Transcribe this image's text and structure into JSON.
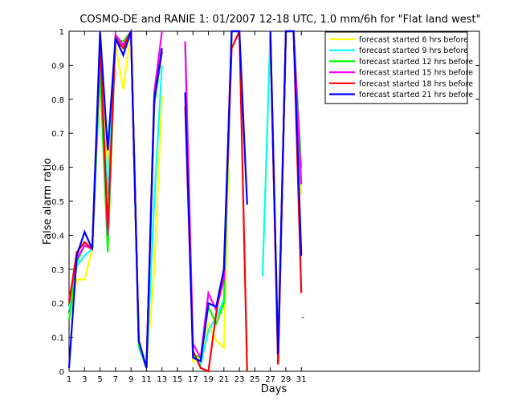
{
  "chart_data": {
    "type": "line",
    "title": "COSMO-DE and RANIE 1: 01/2007 12-18 UTC, 1.0 mm/6h for \"Flat land west\"",
    "xlabel": "Days",
    "ylabel": "False alarm ratio",
    "xlim": [
      1,
      54
    ],
    "ylim": [
      0,
      1
    ],
    "x_ticks": [
      1,
      3,
      5,
      7,
      9,
      11,
      13,
      15,
      17,
      19,
      21,
      23,
      25,
      27,
      29,
      31
    ],
    "y_ticks": [
      0,
      0.1,
      0.2,
      0.3,
      0.4,
      0.5,
      0.6,
      0.7,
      0.8,
      0.9,
      1
    ],
    "y_tick_labels": [
      "0",
      "0.1",
      "0.2",
      "0.3",
      "0.4",
      "0.5",
      "0.6",
      "0.7",
      "0.8",
      "0.9",
      "1"
    ],
    "legend_position": "top-right",
    "grid": false,
    "x": [
      1,
      2,
      3,
      4,
      5,
      6,
      7,
      8,
      9,
      10,
      11,
      12,
      13,
      14,
      15,
      16,
      17,
      18,
      19,
      20,
      21,
      22,
      23,
      24,
      25,
      26,
      27,
      28,
      29,
      30,
      31
    ],
    "series": [
      {
        "name": "forecast started 6 hrs before",
        "color": "#ffff00",
        "values": [
          0.16,
          0.27,
          0.27,
          0.36,
          0.95,
          0.6,
          0.96,
          0.83,
          1.0,
          0.07,
          0.01,
          0.3,
          0.81,
          null,
          null,
          0.97,
          0.03,
          0.04,
          0.14,
          0.09,
          0.07,
          1.0,
          1.0,
          null,
          null,
          0.3,
          1.0,
          0.06,
          1.0,
          1.0,
          0.52
        ]
      },
      {
        "name": "forecast started 9 hrs before",
        "color": "#00ffff",
        "values": [
          0.18,
          0.31,
          0.34,
          0.36,
          0.9,
          0.52,
          0.99,
          0.95,
          1.0,
          0.07,
          0.01,
          0.5,
          0.9,
          null,
          null,
          0.97,
          0.05,
          0.02,
          0.12,
          0.16,
          0.21,
          1.0,
          1.0,
          null,
          null,
          0.28,
          1.0,
          0.04,
          1.0,
          1.0,
          0.55
        ]
      },
      {
        "name": "forecast started 12 hrs before",
        "color": "#00ff00",
        "values": [
          0.15,
          0.32,
          0.37,
          0.36,
          0.88,
          0.35,
          0.98,
          0.97,
          1.0,
          0.08,
          0.01,
          0.78,
          0.94,
          null,
          null,
          0.96,
          0.05,
          0.04,
          0.19,
          0.14,
          0.2,
          1.0,
          1.0,
          null,
          null,
          null,
          1.0,
          0.04,
          1.0,
          1.0,
          0.6
        ]
      },
      {
        "name": "forecast started 15 hrs before",
        "color": "#ff00ff",
        "values": [
          0.21,
          0.33,
          0.37,
          0.36,
          0.97,
          0.4,
          0.99,
          0.96,
          1.0,
          0.09,
          0.01,
          0.82,
          1.0,
          null,
          null,
          0.97,
          0.08,
          0.04,
          0.23,
          0.18,
          0.27,
          1.0,
          1.0,
          null,
          null,
          null,
          1.0,
          0.02,
          1.0,
          1.0,
          0.55
        ]
      },
      {
        "name": "forecast started 18 hrs before",
        "color": "#ff0000",
        "values": [
          0.2,
          0.35,
          0.38,
          0.36,
          0.97,
          0.42,
          0.98,
          0.95,
          1.0,
          0.09,
          0.01,
          0.8,
          0.94,
          null,
          null,
          0.78,
          0.06,
          0.01,
          0.0,
          0.17,
          0.3,
          0.95,
          1.0,
          0.0,
          null,
          null,
          0.98,
          0.02,
          1.0,
          1.0,
          0.23
        ]
      },
      {
        "name": "forecast started 21 hrs before",
        "color": "#0000ff",
        "values": [
          0.01,
          0.34,
          0.41,
          0.36,
          1.0,
          0.65,
          0.98,
          0.93,
          1.0,
          0.09,
          0.01,
          0.8,
          0.95,
          null,
          null,
          0.82,
          0.04,
          0.03,
          0.2,
          0.19,
          0.3,
          1.0,
          1.0,
          0.49,
          null,
          null,
          1.0,
          0.05,
          1.0,
          1.0,
          0.34
        ]
      }
    ],
    "annotations": [
      {
        "text": "-",
        "x": 31,
        "y": 0.16,
        "color": "#ff0000"
      }
    ]
  }
}
